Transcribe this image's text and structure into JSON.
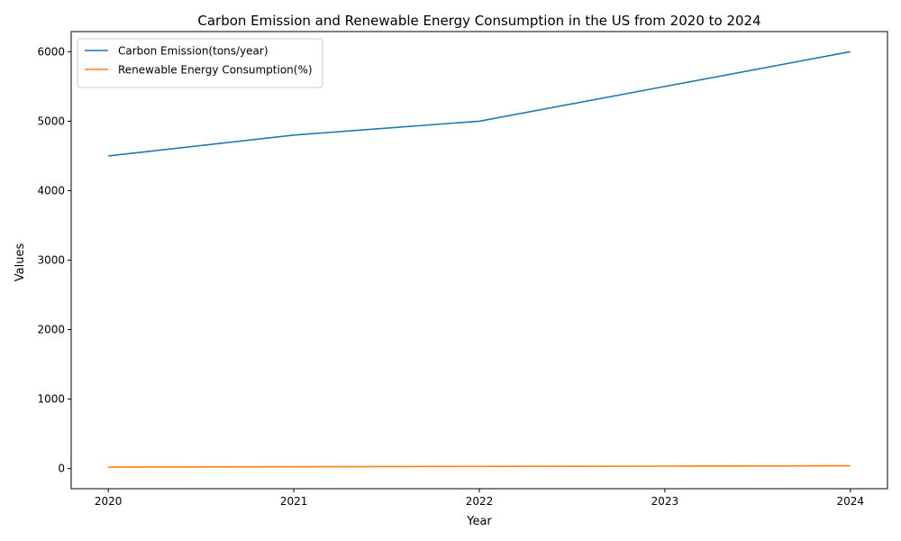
{
  "chart_data": {
    "type": "line",
    "title": "Carbon Emission and Renewable Energy Consumption in the US from 2020 to 2024",
    "xlabel": "Year",
    "ylabel": "Values",
    "x": [
      2020,
      2021,
      2022,
      2023,
      2024
    ],
    "x_ticks": [
      "2020",
      "2021",
      "2022",
      "2023",
      "2024"
    ],
    "y_ticks": [
      "0",
      "1000",
      "2000",
      "3000",
      "4000",
      "5000",
      "6000"
    ],
    "xlim": [
      2019.8,
      2024.2
    ],
    "ylim": [
      -290,
      6290
    ],
    "grid": false,
    "legend_position": "top-left",
    "series": [
      {
        "name": "Carbon Emission(tons/year)",
        "values": [
          4500,
          4800,
          5000,
          5500,
          6000
        ],
        "color": "#1f77b4"
      },
      {
        "name": "Renewable Energy Consumption(%)",
        "values": [
          20,
          25,
          30,
          35,
          40
        ],
        "color": "#ff7f0e"
      }
    ]
  }
}
